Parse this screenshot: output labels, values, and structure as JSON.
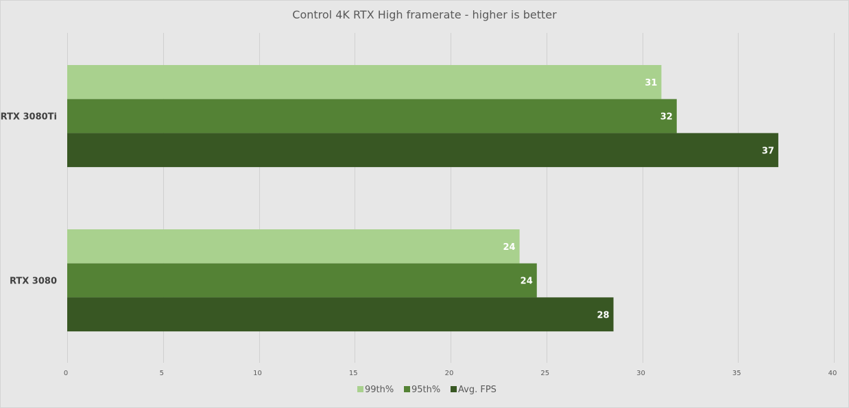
{
  "chart_data": {
    "type": "bar",
    "orientation": "horizontal",
    "title": "Control 4K RTX High framerate - higher is better",
    "categories": [
      "RTX 3080Ti",
      "RTX 3080"
    ],
    "series": [
      {
        "name": "99th%",
        "color": "#a9d18e",
        "values": [
          31,
          23.6
        ],
        "labels": [
          "31",
          "24"
        ]
      },
      {
        "name": "95th%",
        "color": "#548235",
        "values": [
          31.8,
          24.5
        ],
        "labels": [
          "32",
          "24"
        ]
      },
      {
        "name": "Avg. FPS",
        "color": "#385723",
        "values": [
          37.1,
          28.5
        ],
        "labels": [
          "37",
          "28"
        ]
      }
    ],
    "xlim": [
      0,
      40
    ],
    "xticks": [
      "0",
      "5",
      "10",
      "15",
      "20",
      "25",
      "30",
      "35",
      "40"
    ],
    "xlabel": "",
    "ylabel": "",
    "grid": true,
    "legend_position": "bottom"
  }
}
